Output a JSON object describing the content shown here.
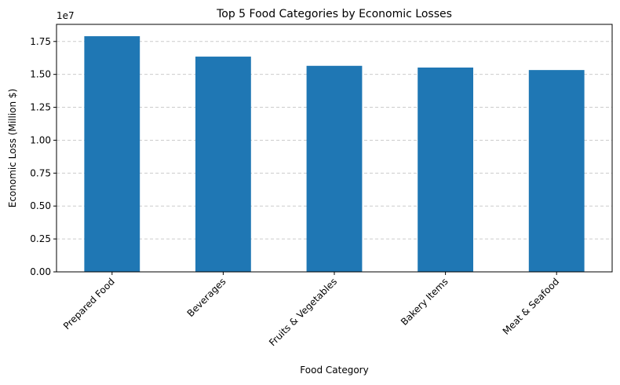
{
  "chart_data": {
    "type": "bar",
    "title": "Top 5 Food Categories by Economic Losses",
    "xlabel": "Food Category",
    "ylabel": "Economic Loss (Million $)",
    "y_offset_label": "1e7",
    "categories": [
      "Prepared Food",
      "Beverages",
      "Fruits & Vegetables",
      "Bakery Items",
      "Meat & Seafood"
    ],
    "values": [
      17900000,
      16350000,
      15650000,
      15520000,
      15330000
    ],
    "ylim": [
      0,
      18800000
    ],
    "yticks": [
      0,
      2500000,
      5000000,
      7500000,
      10000000,
      12500000,
      15000000,
      17500000
    ],
    "ytick_labels": [
      "0.00",
      "0.25",
      "0.50",
      "0.75",
      "1.00",
      "1.25",
      "1.50",
      "1.75"
    ],
    "grid": "y-dashed",
    "bar_color": "#1f77b4",
    "grid_color": "#cccccc"
  }
}
